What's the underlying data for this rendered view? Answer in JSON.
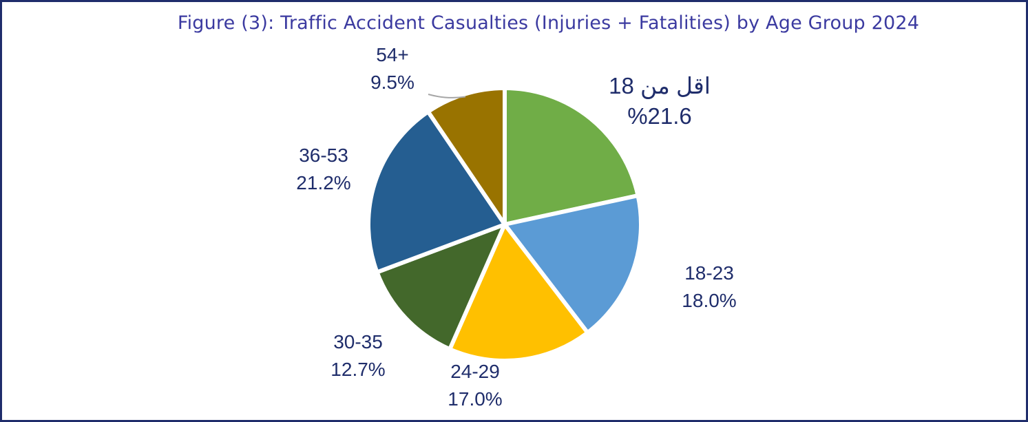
{
  "chart_data": {
    "type": "pie",
    "title": "Figure (3): Traffic Accident Casualties (Injuries + Fatalities) by Age Group 2024",
    "slices": [
      {
        "label": "اقل من 18",
        "value": 21.6,
        "value_label": "%21.6",
        "color": "#70ad47"
      },
      {
        "label": "18-23",
        "value": 18.0,
        "value_label": "18.0%",
        "color": "#5b9bd5"
      },
      {
        "label": "24-29",
        "value": 17.0,
        "value_label": "17.0%",
        "color": "#ffc000"
      },
      {
        "label": "30-35",
        "value": 12.7,
        "value_label": "12.7%",
        "color": "#43682b"
      },
      {
        "label": "36-53",
        "value": 21.2,
        "value_label": "21.2%",
        "color": "#255e91"
      },
      {
        "label": "54+",
        "value": 9.5,
        "value_label": "9.5%",
        "color": "#997300"
      }
    ],
    "start_angle_deg": 0,
    "direction": "clockwise",
    "legend": "none"
  },
  "style": {
    "frame_color": "#1f2d6b",
    "title_color": "#3b3aa0",
    "label_color": "#1f2d6b",
    "slice_border_color": "#ffffff",
    "leader_line_color": "#a6a6a6"
  }
}
